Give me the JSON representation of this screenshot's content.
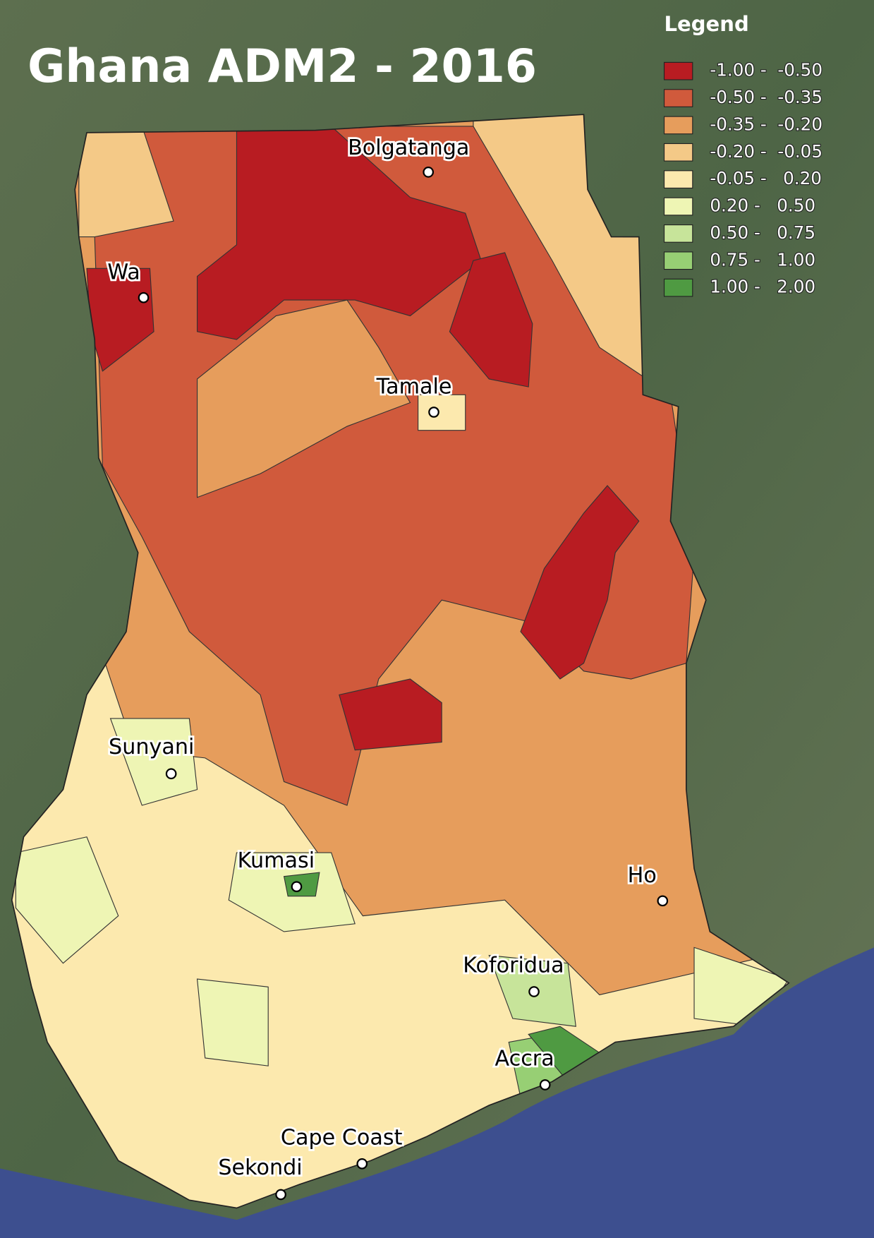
{
  "title": "Ghana ADM2 - 2016",
  "legend": {
    "title": "Legend",
    "items": [
      {
        "label": "-1.00 -  -0.50",
        "color": "#b81c22"
      },
      {
        "label": "-0.50 -  -0.35",
        "color": "#d05a3c"
      },
      {
        "label": "-0.35 -  -0.20",
        "color": "#e69d5c"
      },
      {
        "label": "-0.20 -  -0.05",
        "color": "#f4c987"
      },
      {
        "label": "-0.05 -   0.20",
        "color": "#fce9ae"
      },
      {
        "label": "0.20 -   0.50",
        "color": "#eef5b4"
      },
      {
        "label": "0.50 -   0.75",
        "color": "#c7e49a"
      },
      {
        "label": "0.75 -   1.00",
        "color": "#97cf74"
      },
      {
        "label": "1.00 -   2.00",
        "color": "#4f9a42"
      }
    ]
  },
  "cities": [
    "Bolgatanga",
    "Wa",
    "Tamale",
    "Sunyani",
    "Kumasi",
    "Ho",
    "Koforidua",
    "Accra",
    "Cape Coast",
    "Sekondi"
  ]
}
